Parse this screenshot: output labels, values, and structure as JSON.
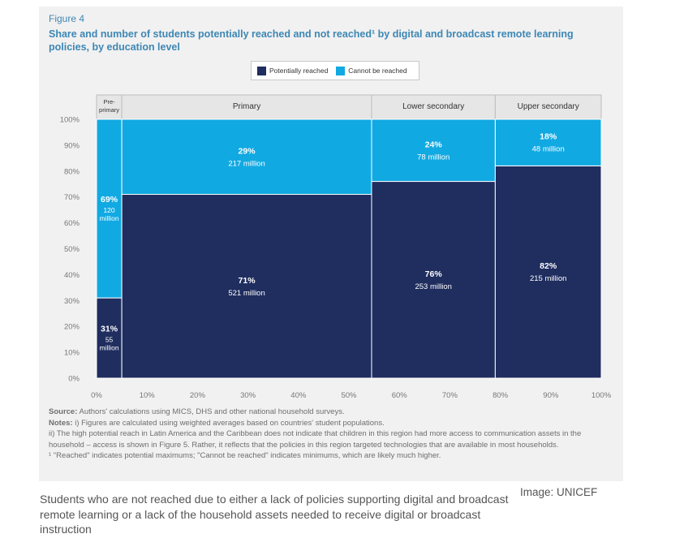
{
  "figure_label": "Figure 4",
  "title": "Share and number of students potentially reached and not reached¹ by digital and broadcast remote learning policies, by education level",
  "notes": {
    "source_label": "Source:",
    "source_text": "Authors' calculations using MICS, DHS and other national household surveys.",
    "notes_label": "Notes:",
    "note_i": "i) Figures are calculated using weighted averages based on countries' student populations.",
    "note_ii": "ii) The high potential reach in Latin America and the Caribbean does not indicate that children in this region had more access to communication assets in the household – access is shown in Figure 5. Rather, it reflects that the policies in this region targeted technologies that are available in most households.",
    "footnote": "¹ \"Reached\" indicates potential maximums; \"Cannot be reached\" indicates minimums, which are likely much higher."
  },
  "caption": "Students who are not reached due to either a lack of policies supporting digital and broadcast remote learning or a lack of the household assets needed to receive digital or broadcast instruction",
  "credit": "Image: UNICEF",
  "colors": {
    "reached": "#1f2d5f",
    "not_reached": "#11a9e2",
    "panel": "#f1f1f1"
  },
  "chart_data": {
    "type": "bar",
    "subtype": "marimekko",
    "legend": [
      "Potentially reached",
      "Cannot be reached"
    ],
    "legend_placement": "top",
    "x_ticks": [
      "0%",
      "10%",
      "20%",
      "30%",
      "40%",
      "50%",
      "60%",
      "70%",
      "80%",
      "90%",
      "100%"
    ],
    "y_ticks": [
      "0%",
      "10%",
      "20%",
      "30%",
      "40%",
      "50%",
      "60%",
      "70%",
      "80%",
      "90%",
      "100%"
    ],
    "xlim": [
      0,
      100
    ],
    "ylim": [
      0,
      100
    ],
    "categories": [
      {
        "name": "Pre-primary",
        "x_start": 0,
        "x_end": 5,
        "segments": [
          {
            "series": "Potentially reached",
            "percent": 31,
            "label": "31%",
            "value_label": "55 million"
          },
          {
            "series": "Cannot be reached",
            "percent": 69,
            "label": "69%",
            "value_label": "120 million"
          }
        ]
      },
      {
        "name": "Primary",
        "x_start": 5,
        "x_end": 54.5,
        "segments": [
          {
            "series": "Potentially reached",
            "percent": 71,
            "label": "71%",
            "value_label": "521 million"
          },
          {
            "series": "Cannot be reached",
            "percent": 29,
            "label": "29%",
            "value_label": "217 million"
          }
        ]
      },
      {
        "name": "Lower secondary",
        "x_start": 54.5,
        "x_end": 79,
        "segments": [
          {
            "series": "Potentially reached",
            "percent": 76,
            "label": "76%",
            "value_label": "253 million"
          },
          {
            "series": "Cannot be reached",
            "percent": 24,
            "label": "24%",
            "value_label": "78 million"
          }
        ]
      },
      {
        "name": "Upper secondary",
        "x_start": 79,
        "x_end": 100,
        "segments": [
          {
            "series": "Potentially reached",
            "percent": 82,
            "label": "82%",
            "value_label": "215 million"
          },
          {
            "series": "Cannot be reached",
            "percent": 18,
            "label": "18%",
            "value_label": "48 million"
          }
        ]
      }
    ]
  }
}
